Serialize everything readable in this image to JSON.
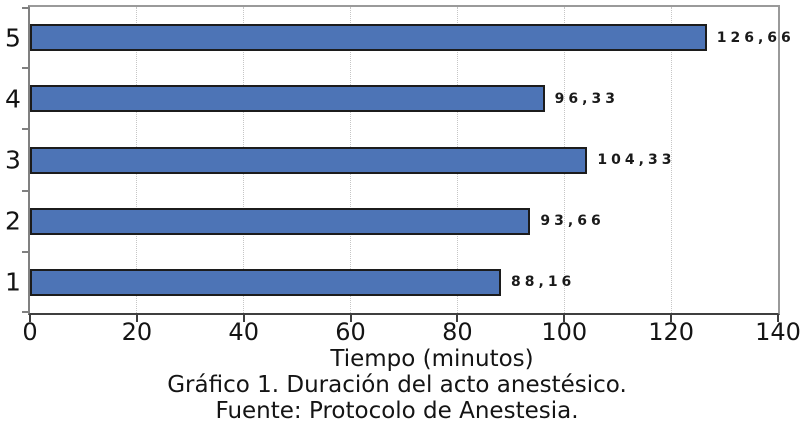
{
  "chart_data": {
    "type": "bar",
    "orientation": "horizontal",
    "title": "Gráfico 1. Duración del acto anestésico.",
    "source": "Fuente: Protocolo de Anestesia.",
    "xlabel": "Tiempo (minutos)",
    "ylabel": "",
    "categories": [
      "5",
      "4",
      "3",
      "2",
      "1"
    ],
    "values": [
      126.66,
      96.33,
      104.33,
      93.66,
      88.16
    ],
    "value_labels": [
      "126,66",
      "96,33",
      "104,33",
      "93,66",
      "88,16"
    ],
    "xlim": [
      0,
      140
    ],
    "xticks": [
      0,
      20,
      40,
      60,
      80,
      100,
      120,
      140
    ],
    "grid": "vertical-dotted",
    "legend": "none",
    "bar_color": "#4d74b6",
    "bar_border_color": "#1c1c1c"
  },
  "caption": {
    "line1": "Gráfico 1. Duración del acto anestésico.",
    "line2": "Fuente: Protocolo de Anestesia."
  }
}
